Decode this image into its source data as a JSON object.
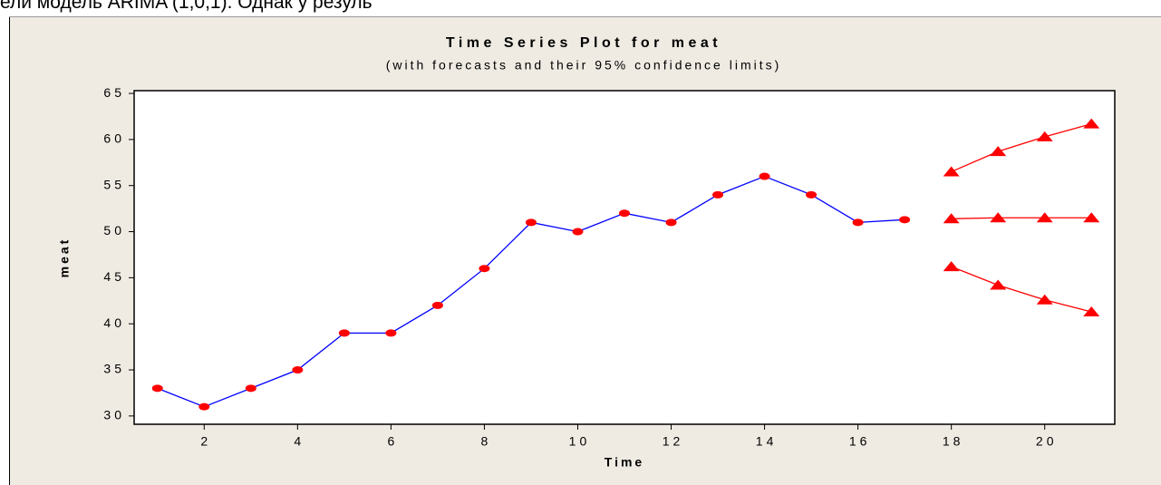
{
  "page_text": "ели модель ARIMA (1,0,1). Однак у резуль",
  "chart_data": {
    "type": "line",
    "title": "Time Series Plot for meat",
    "subtitle": "(with forecasts and their 95% confidence limits)",
    "x_label": "Time",
    "y_label": "meat",
    "xlim": [
      0.5,
      21.5
    ],
    "ylim": [
      29.1,
      65.3
    ],
    "xticks": [
      2,
      4,
      6,
      8,
      10,
      12,
      14,
      16,
      18,
      20
    ],
    "yticks": [
      30,
      35,
      40,
      45,
      50,
      55,
      60,
      65
    ],
    "grid": false,
    "series": [
      {
        "color": "#0000ff",
        "marker": "circle",
        "marker_color": "#ff0000",
        "x": [
          1,
          2,
          3,
          4,
          5,
          6,
          7,
          8,
          9,
          10,
          11,
          12,
          13,
          14,
          15,
          16,
          17
        ],
        "values": [
          33,
          31,
          33,
          35,
          39,
          39,
          42,
          46,
          51,
          50,
          52,
          51,
          54,
          56,
          54,
          51,
          51.3
        ]
      },
      {
        "color": "#ff0000",
        "marker": "triangle",
        "marker_color": "#ff0000",
        "x": [
          18,
          19,
          20,
          21
        ],
        "values": [
          56.5,
          58.7,
          60.3,
          61.7
        ]
      },
      {
        "color": "#ff0000",
        "marker": "triangle",
        "marker_color": "#ff0000",
        "x": [
          18,
          19,
          20,
          21
        ],
        "values": [
          51.4,
          51.5,
          51.5,
          51.5
        ]
      },
      {
        "color": "#ff0000",
        "marker": "triangle",
        "marker_color": "#ff0000",
        "x": [
          18,
          19,
          20,
          21
        ],
        "values": [
          46.2,
          44.2,
          42.6,
          41.3
        ]
      }
    ]
  }
}
